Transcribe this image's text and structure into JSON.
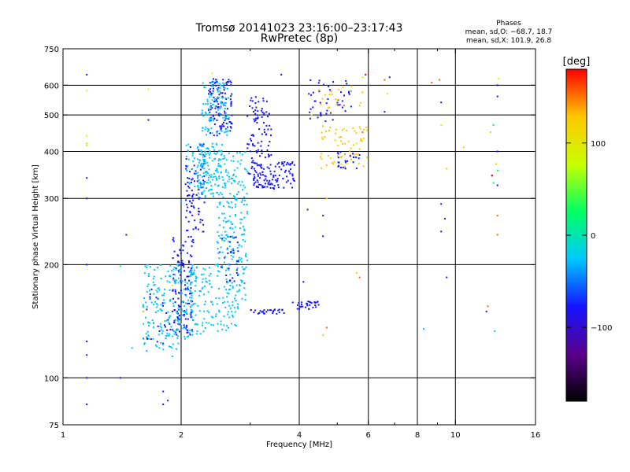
{
  "chart_data": {
    "type": "scatter",
    "title": "Tromsø 20141023 23:16:00–23:17:43",
    "subtitle": "RwPretec (8p)",
    "xlabel": "Frequency [MHz]",
    "ylabel": "Stationary phase Virtual Height [km]",
    "x_scale": "log",
    "y_scale": "log",
    "xlim": [
      1,
      16
    ],
    "ylim": [
      75,
      750
    ],
    "x_ticks": [
      1,
      2,
      4,
      6,
      8,
      10,
      16
    ],
    "x_minor_ticks": [
      3,
      5,
      7,
      9
    ],
    "y_ticks": [
      75,
      100,
      200,
      300,
      400,
      500,
      600,
      750
    ],
    "x_gridlines": [
      2,
      4,
      6,
      8,
      10
    ],
    "y_gridlines": [
      100,
      200,
      300,
      400,
      500,
      600
    ],
    "grid": true,
    "stats": {
      "heading": "Phases",
      "line1": "mean, sd,O: −68.7, 18.7",
      "line2": "mean, sd,X: 101.9, 26.8"
    },
    "colorbar": {
      "label": "[deg]",
      "range": [
        -180,
        180
      ],
      "ticks": [
        100,
        0,
        -100
      ],
      "colors": [
        "#000000",
        "#5a008c",
        "#1414ff",
        "#00c8ff",
        "#00ff64",
        "#c8ff00",
        "#ffc800",
        "#ff0000"
      ]
    },
    "series": [
      {
        "color": "#1414ff",
        "clusters": [
          [
            1.9,
            2.15,
            130,
            240,
            140
          ],
          [
            2.05,
            2.3,
            240,
            420,
            90
          ],
          [
            2.35,
            2.7,
            440,
            630,
            120
          ],
          [
            2.95,
            3.4,
            320,
            560,
            110
          ],
          [
            3.05,
            3.9,
            318,
            375,
            90
          ],
          [
            3.0,
            3.7,
            148,
            152,
            30
          ],
          [
            3.8,
            4.5,
            152,
            160,
            30
          ],
          [
            4.2,
            5.5,
            480,
            620,
            45
          ],
          [
            5.0,
            5.7,
            360,
            400,
            25
          ],
          [
            1.6,
            1.9,
            120,
            180,
            25
          ],
          [
            2.5,
            2.8,
            180,
            240,
            30
          ]
        ],
        "points": [
          [
            1.15,
            640
          ],
          [
            1.15,
            340
          ],
          [
            1.15,
            300
          ],
          [
            1.15,
            200
          ],
          [
            1.15,
            125
          ],
          [
            1.15,
            115
          ],
          [
            1.15,
            100
          ],
          [
            1.15,
            85
          ],
          [
            1.4,
            100
          ],
          [
            1.65,
            485
          ],
          [
            1.8,
            92
          ],
          [
            1.8,
            85
          ],
          [
            1.85,
            87
          ],
          [
            3.6,
            640
          ],
          [
            4.1,
            180
          ],
          [
            4.2,
            280
          ],
          [
            4.6,
            270
          ],
          [
            4.6,
            238
          ],
          [
            6.6,
            510
          ],
          [
            6.8,
            630
          ],
          [
            9.2,
            540
          ],
          [
            9.2,
            290
          ],
          [
            9.2,
            245
          ],
          [
            9.4,
            265
          ],
          [
            9.5,
            185
          ],
          [
            12.8,
            600
          ],
          [
            12.8,
            560
          ],
          [
            12.8,
            400
          ],
          [
            12.8,
            325
          ],
          [
            12.4,
            345
          ],
          [
            12.0,
            150
          ],
          [
            1.45,
            240
          ]
        ]
      },
      {
        "color": "#00c8ff",
        "clusters": [
          [
            1.6,
            2.15,
            118,
            200,
            200
          ],
          [
            2.2,
            2.55,
            300,
            420,
            110
          ],
          [
            2.25,
            2.65,
            440,
            620,
            100
          ],
          [
            2.45,
            2.95,
            160,
            400,
            240
          ],
          [
            2.1,
            2.4,
            130,
            200,
            80
          ],
          [
            2.05,
            2.35,
            320,
            420,
            40
          ],
          [
            2.4,
            2.8,
            130,
            160,
            40
          ]
        ],
        "points": [
          [
            2.25,
            400
          ],
          [
            2.3,
            380
          ],
          [
            8.3,
            135
          ],
          [
            12.6,
            133
          ],
          [
            2.0,
            295
          ],
          [
            1.5,
            120
          ],
          [
            1.7,
            140
          ],
          [
            1.9,
            114
          ]
        ]
      },
      {
        "color": "#00ff64",
        "points": [
          [
            1.4,
            198
          ],
          [
            12.5,
            470
          ],
          [
            12.8,
            356
          ],
          [
            12.5,
            330
          ]
        ]
      },
      {
        "color": "#c8ff00",
        "points": [
          [
            1.15,
            580
          ],
          [
            1.15,
            440
          ],
          [
            1.15,
            415
          ],
          [
            1.65,
            585
          ],
          [
            2.4,
            645
          ],
          [
            4.8,
            510
          ],
          [
            5.4,
            580
          ],
          [
            5.8,
            630
          ],
          [
            6.7,
            570
          ],
          [
            4.3,
            500
          ],
          [
            5.2,
            460
          ],
          [
            5.6,
            420
          ],
          [
            12.9,
            625
          ],
          [
            1.9,
            176
          ],
          [
            9.2,
            470
          ]
        ]
      },
      {
        "color": "#ffc800",
        "clusters": [
          [
            4.5,
            6.0,
            360,
            470,
            60
          ],
          [
            4.4,
            5.8,
            520,
            600,
            20
          ]
        ],
        "points": [
          [
            1.15,
            420
          ],
          [
            4.7,
            300
          ],
          [
            4.6,
            130
          ],
          [
            5.6,
            190
          ],
          [
            12.3,
            450
          ],
          [
            12.7,
            370
          ],
          [
            9.5,
            360
          ],
          [
            10.5,
            410
          ],
          [
            2.2,
            316
          ],
          [
            1.6,
            150
          ]
        ]
      },
      {
        "color": "#ff6400",
        "points": [
          [
            4.7,
            136
          ],
          [
            5.7,
            185
          ],
          [
            6.6,
            620
          ],
          [
            5.2,
            530
          ],
          [
            5.8,
            450
          ],
          [
            12.8,
            270
          ],
          [
            12.8,
            240
          ],
          [
            9.1,
            620
          ],
          [
            8.7,
            610
          ],
          [
            12.1,
            155
          ]
        ]
      },
      {
        "color": "#ff0000",
        "points": [
          [
            5.9,
            640
          ],
          [
            12.4,
            345
          ],
          [
            5.4,
            390
          ]
        ]
      }
    ]
  }
}
